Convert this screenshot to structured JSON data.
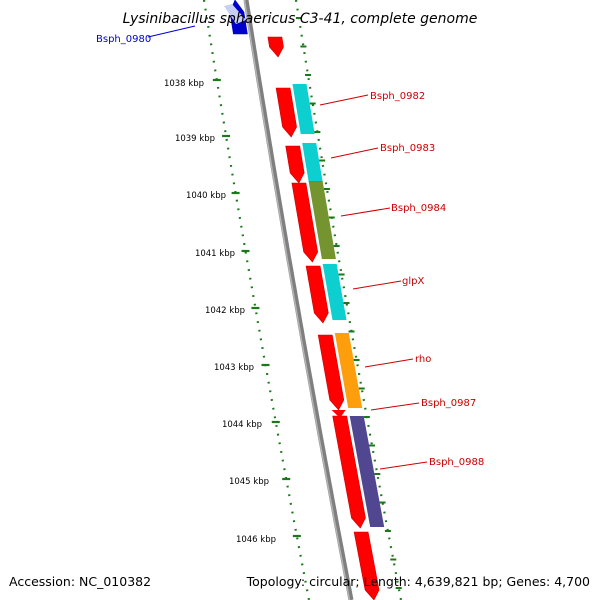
{
  "map": {
    "title": "Lysinibacillus sphaericus C3-41, complete genome",
    "accession": "Accession: NC_010382",
    "stats": "Topology: circular; Length: 4,639,821 bp; Genes: 4,700"
  },
  "ticks": [
    "1038 kbp",
    "1039 kbp",
    "1040 kbp",
    "1041 kbp",
    "1042 kbp",
    "1043 kbp",
    "1044 kbp",
    "1045 kbp",
    "1046 kbp"
  ],
  "gene_labels": [
    "Bsph_0980",
    "Bsph_0982",
    "Bsph_0983",
    "Bsph_0984",
    "glpX",
    "rho",
    "Bsph_0987",
    "Bsph_0988"
  ],
  "colors": {
    "backbone": "#7f7f7f",
    "tick_mark": "#1a7a1a",
    "forward_gene": "#ff0000",
    "reverse_gene": "#0000cc",
    "label_red": "#cc0000",
    "label_blue": "#0000cc",
    "cog_cyan": "#00cccc",
    "cog_olive": "#6b8e23",
    "cog_orange": "#ff9900",
    "cog_purple": "#483d8b"
  }
}
